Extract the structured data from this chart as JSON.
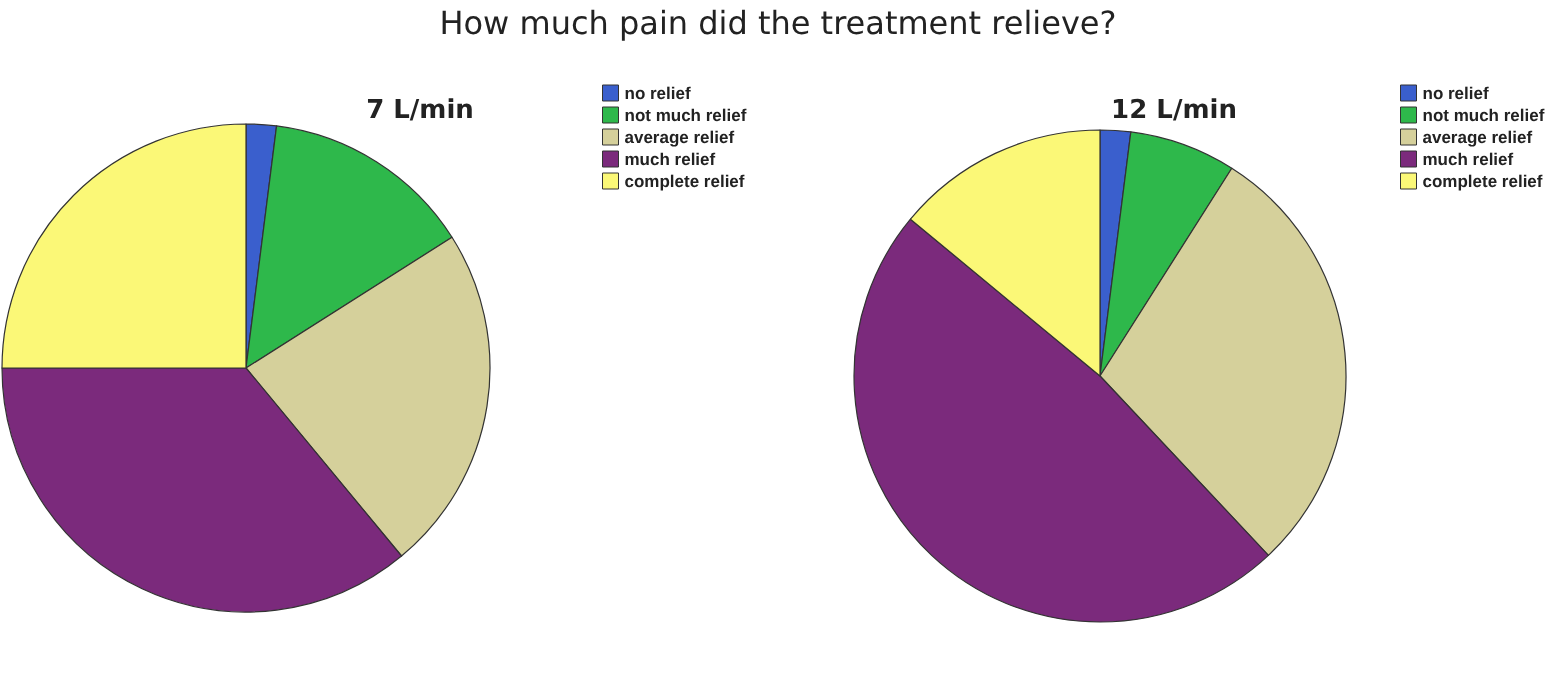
{
  "chart_data": [
    {
      "type": "pie",
      "title": "How much pain did the treatment relieve?",
      "subtitle": "7 L/min",
      "legend": "top right",
      "categories": [
        "no relief",
        "not much relief",
        "average relief",
        "much relief",
        "complete relief"
      ],
      "values": [
        2,
        14,
        23,
        36,
        25
      ],
      "colors": [
        "#3a5fcd",
        "#2eb84b",
        "#d5d09b",
        "#7b2a7c",
        "#fbf877"
      ]
    },
    {
      "type": "pie",
      "subtitle": "12 L/min",
      "legend": "top right",
      "categories": [
        "no relief",
        "not much relief",
        "average relief",
        "much relief",
        "complete relief"
      ],
      "values": [
        2,
        7,
        29,
        48,
        14
      ],
      "colors": [
        "#3a5fcd",
        "#2eb84b",
        "#d5d09b",
        "#7b2a7c",
        "#fbf877"
      ]
    }
  ]
}
